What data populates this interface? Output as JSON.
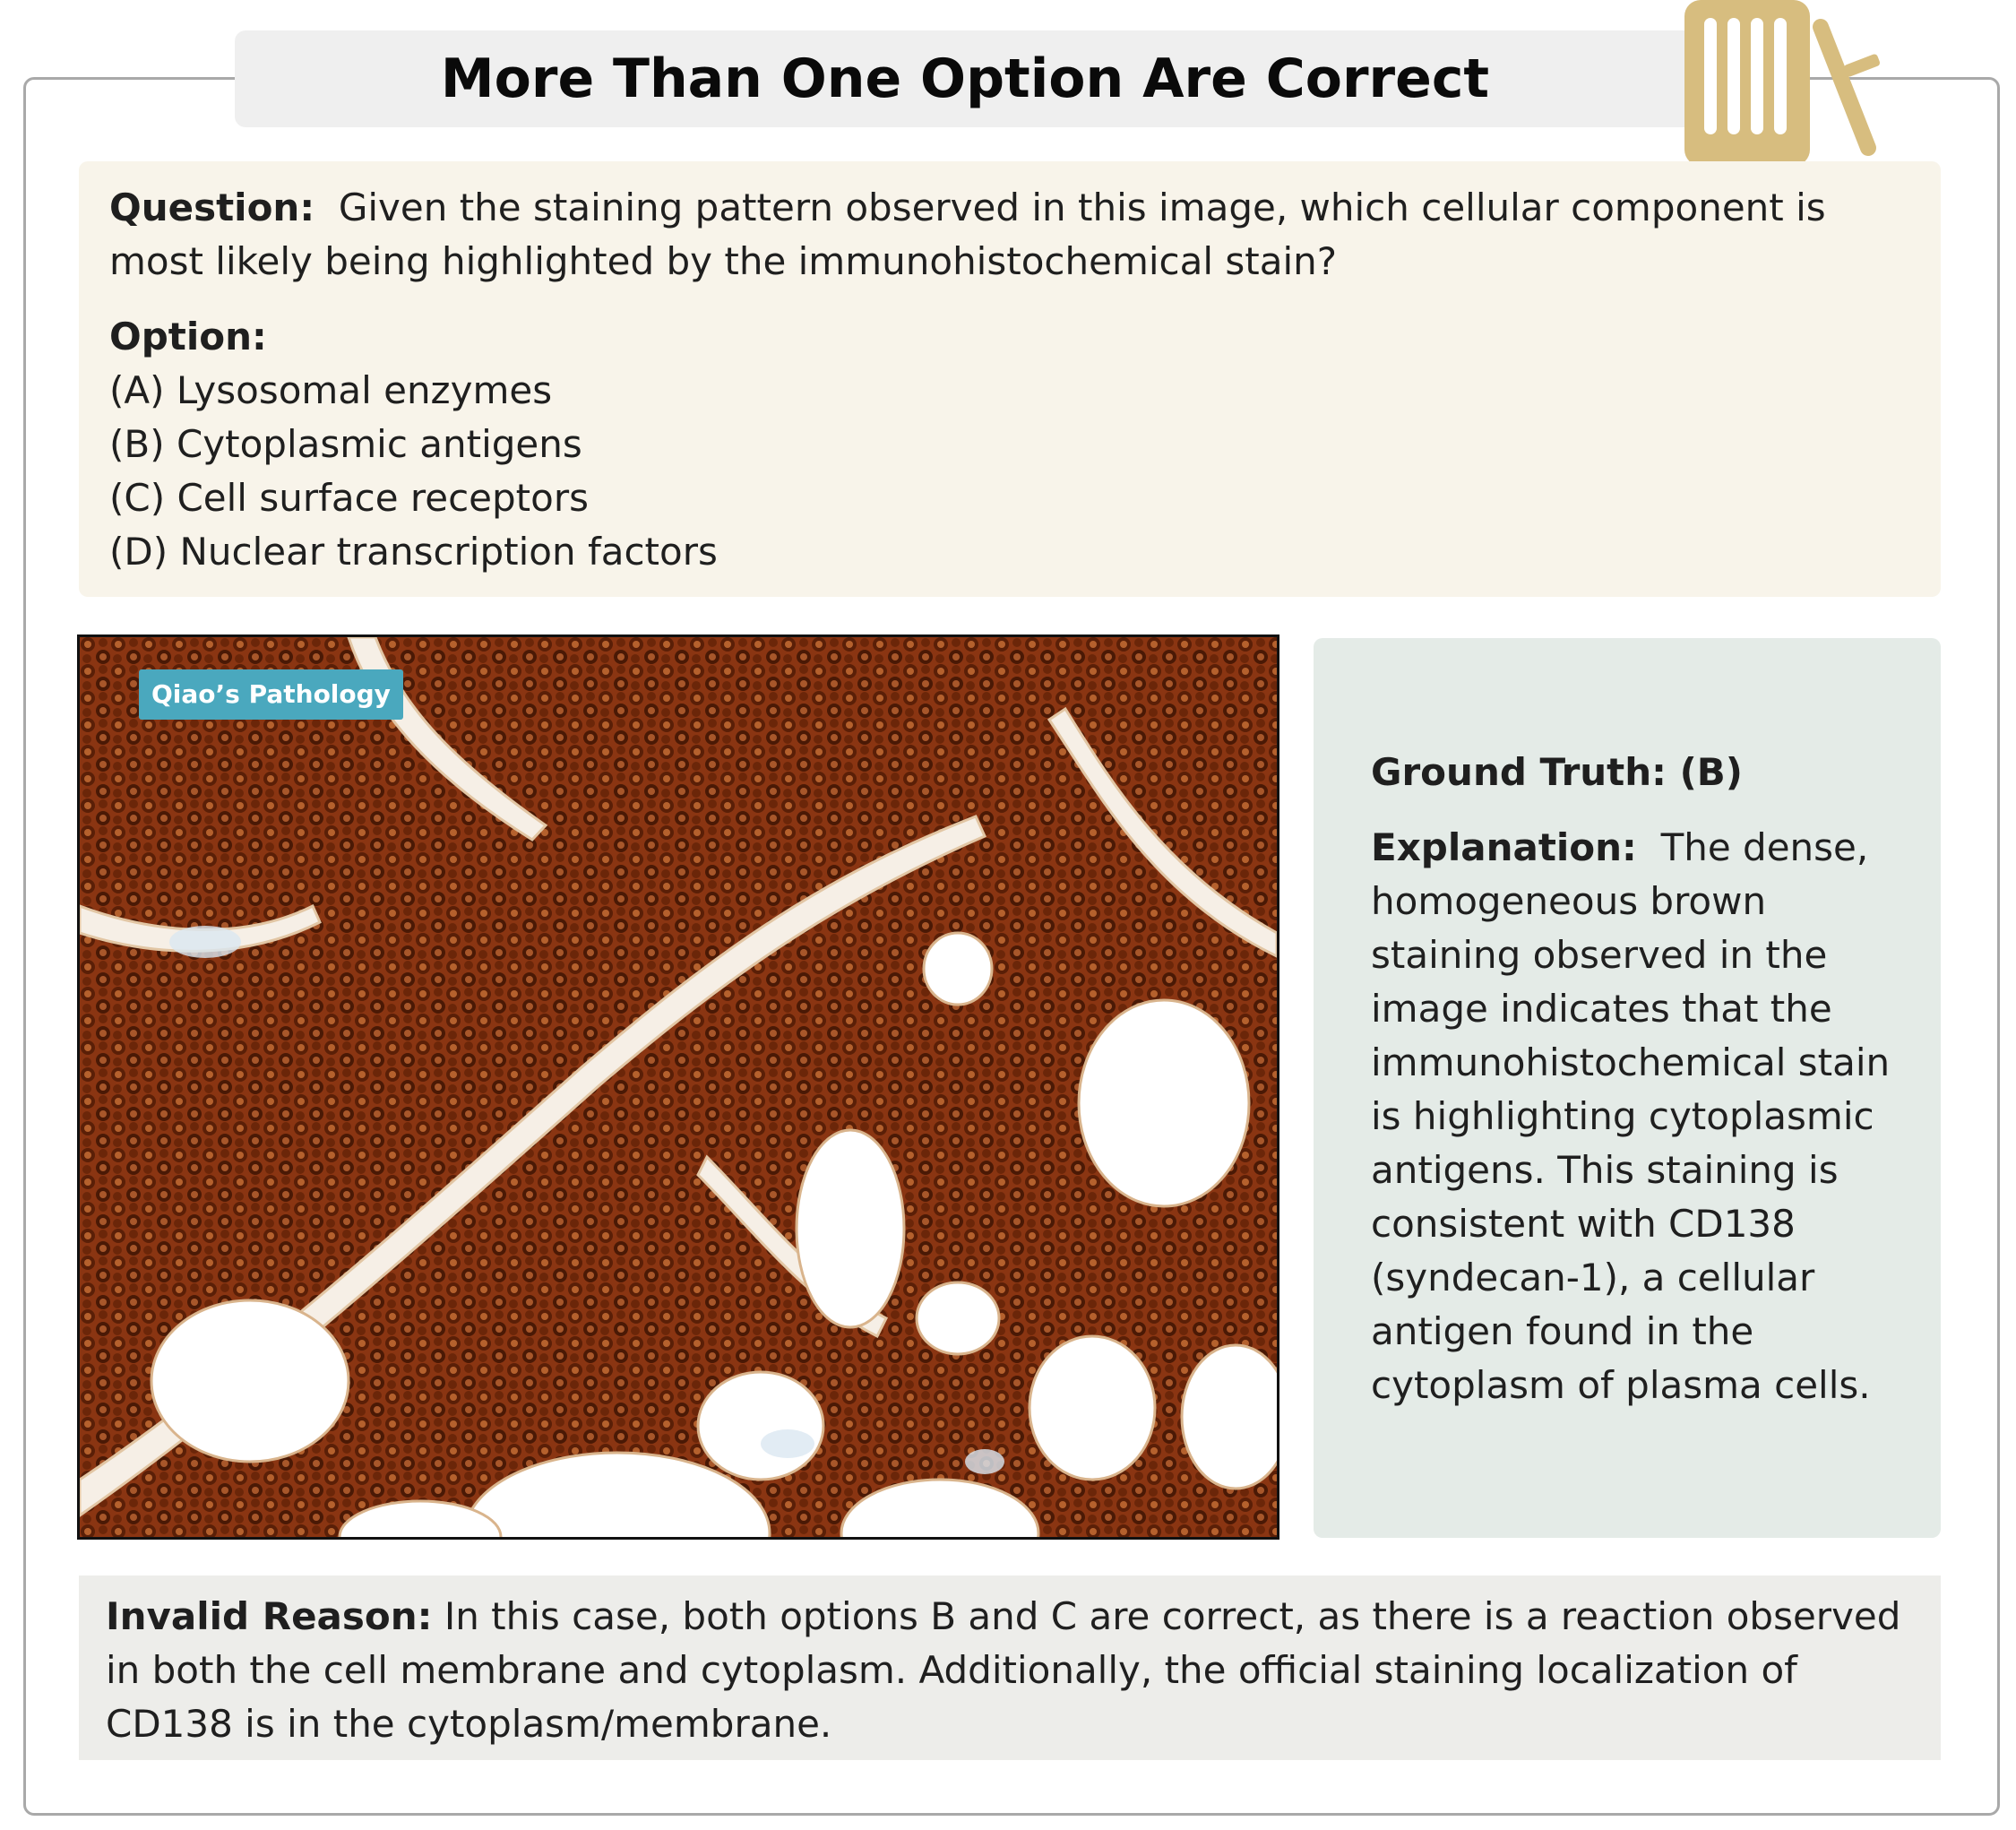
{
  "title": "More Than One Option Are Correct",
  "logo": {
    "icon": "test-tube-rack-icon",
    "color": "#d7bd7f"
  },
  "question": {
    "label": "Question:",
    "text": "Given the staining pattern observed in this image, which cellular component is most likely being highlighted by the immunohistochemical stain?"
  },
  "options": {
    "label": "Option:",
    "items": [
      {
        "key": "(A)",
        "text": "Lysosomal enzymes"
      },
      {
        "key": "(B)",
        "text": "Cytoplasmic antigens"
      },
      {
        "key": "(C)",
        "text": "Cell surface receptors"
      },
      {
        "key": "(D)",
        "text": "Nuclear transcription factors"
      }
    ]
  },
  "image": {
    "watermark": "Qiao’s Pathology",
    "colors": {
      "stain": "#7a2e0e",
      "stain_dark": "#3e1405",
      "stroma": "#f6efe6",
      "fat": "#ffffff"
    }
  },
  "answer": {
    "ground_truth_label": "Ground Truth: (B)",
    "explanation_label": "Explanation:",
    "explanation_text": "The dense, homogeneous brown staining observed in the image indicates that the immunohistochemical stain is highlighting cytoplasmic antigens. This staining is consistent with CD138 (syndecan-1), a cellular antigen found in the cytoplasm of plasma cells."
  },
  "invalid": {
    "label": "Invalid Reason:",
    "text": "In this case, both options B and C are correct, as there is a reaction observed in both the cell membrane and cytoplasm. Additionally, the official staining localization of CD138 is in the cytoplasm/membrane."
  }
}
